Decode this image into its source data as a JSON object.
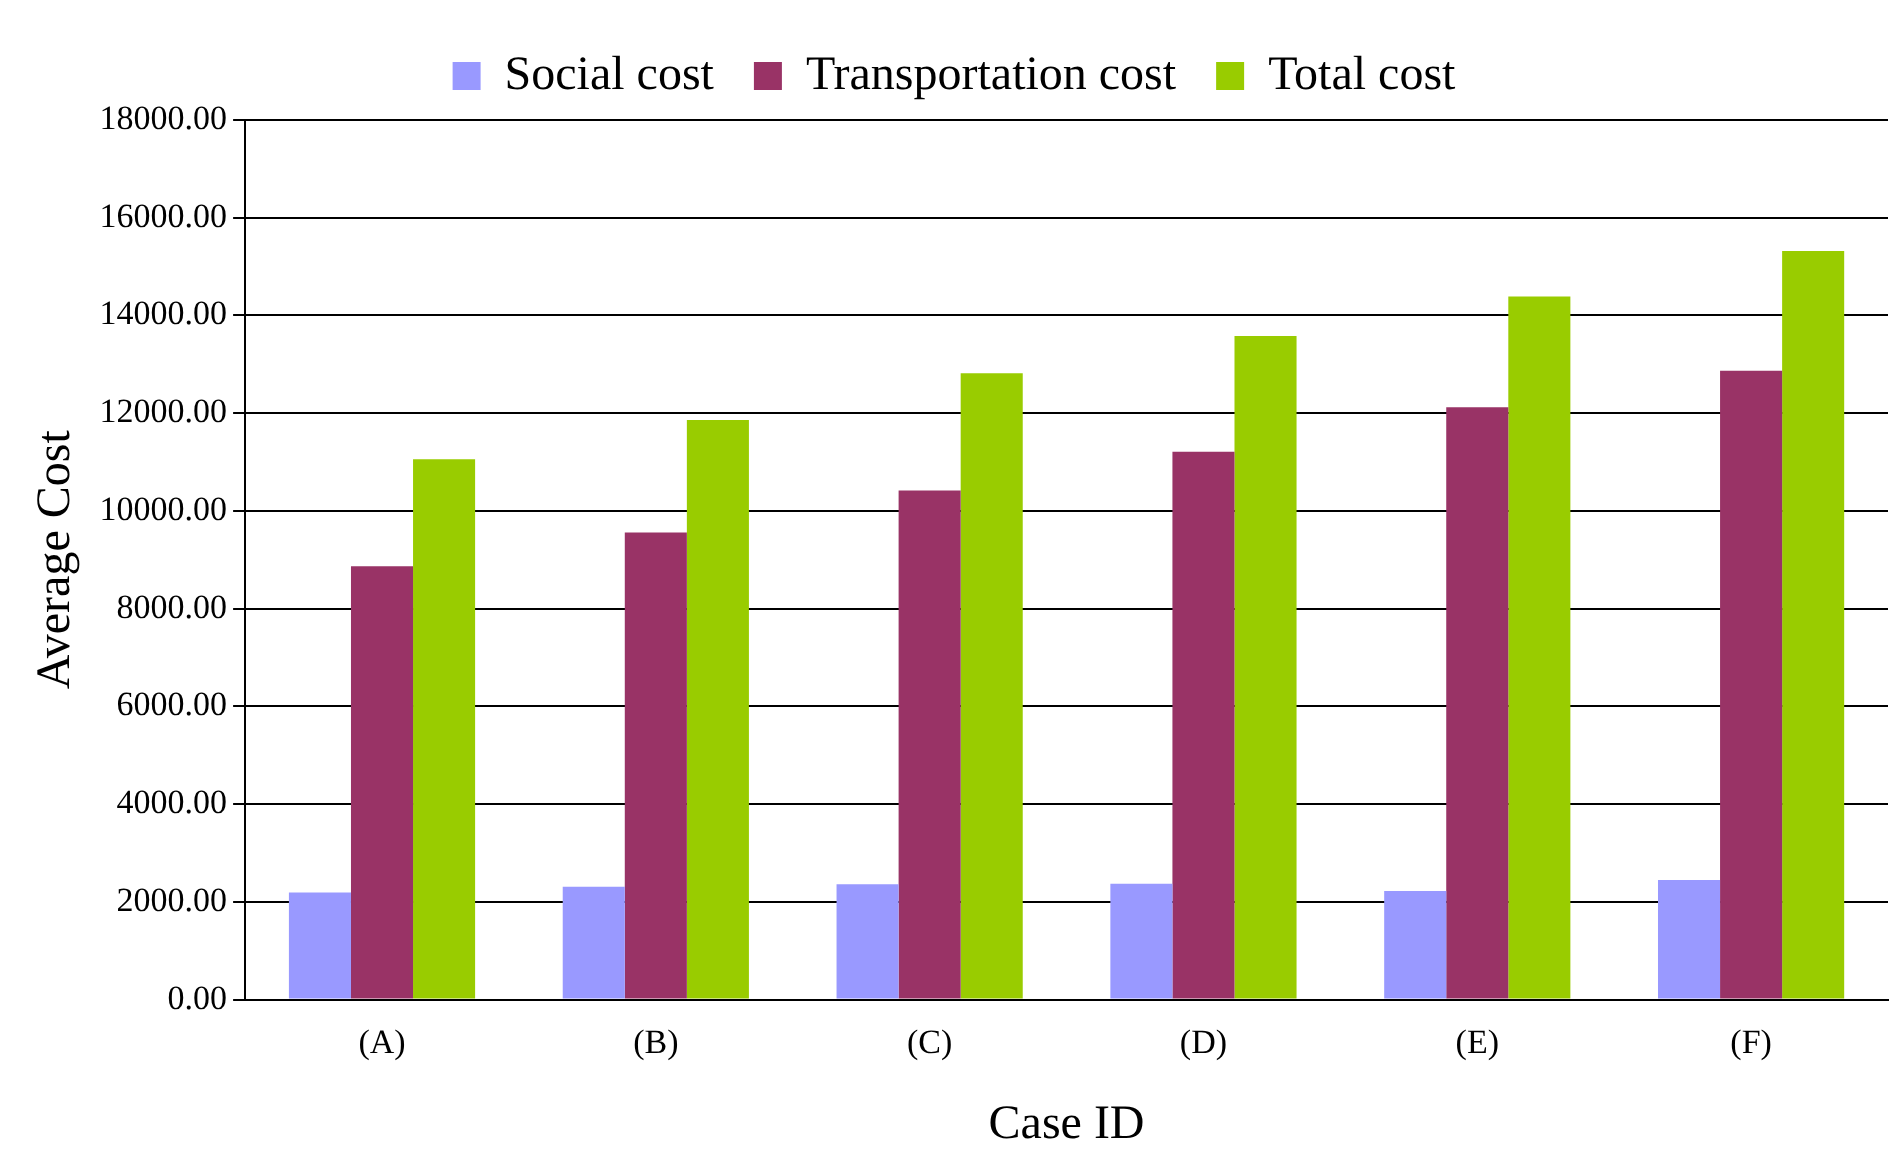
{
  "chart_data": {
    "type": "bar",
    "xlabel": "Case ID",
    "ylabel": "Average Cost",
    "categories": [
      "(A)",
      "(B)",
      "(C)",
      "(D)",
      "(E)",
      "(F)"
    ],
    "series": [
      {
        "name": "Social cost",
        "color": "#9999ff",
        "values": [
          2190,
          2310,
          2360,
          2370,
          2220,
          2450
        ]
      },
      {
        "name": "Transportation cost",
        "color": "#993366",
        "values": [
          8870,
          9560,
          10420,
          11210,
          12120,
          12870
        ]
      },
      {
        "name": "Total cost",
        "color": "#99cc00",
        "values": [
          11060,
          11860,
          12820,
          13580,
          14390,
          15320
        ]
      }
    ],
    "ylim": [
      0,
      18000
    ],
    "yticks": [
      {
        "value": 0,
        "label": "0.00"
      },
      {
        "value": 2000,
        "label": "2000.00"
      },
      {
        "value": 4000,
        "label": "4000.00"
      },
      {
        "value": 6000,
        "label": "6000.00"
      },
      {
        "value": 8000,
        "label": "8000.00"
      },
      {
        "value": 10000,
        "label": "10000.00"
      },
      {
        "value": 12000,
        "label": "12000.00"
      },
      {
        "value": 14000,
        "label": "14000.00"
      },
      {
        "value": 16000,
        "label": "16000.00"
      },
      {
        "value": 18000,
        "label": "18000.00"
      }
    ],
    "grid": "y",
    "legend": "top"
  }
}
